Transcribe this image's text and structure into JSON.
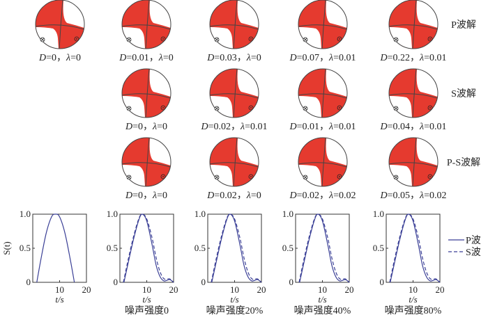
{
  "symbols": {
    "D": "D",
    "lambda": "λ",
    "eq": "=",
    "sep": "，"
  },
  "colors": {
    "red": "#e53a2f",
    "line": "#444444",
    "curve": "#3a3f96"
  },
  "rows": [
    {
      "title": "P波解",
      "balls": [
        {
          "D": "0",
          "lambda": "0"
        },
        {
          "D": "0.01",
          "lambda": "0"
        },
        {
          "D": "0.03",
          "lambda": "0"
        },
        {
          "D": "0.07",
          "lambda": "0.01"
        },
        {
          "D": "0.22",
          "lambda": "0.01"
        }
      ]
    },
    {
      "title": "S波解",
      "balls": [
        null,
        {
          "D": "0",
          "lambda": "0"
        },
        {
          "D": "0.02",
          "lambda": "0.01"
        },
        {
          "D": "0.01",
          "lambda": "0.01"
        },
        {
          "D": "0.04",
          "lambda": "0.01"
        }
      ]
    },
    {
      "title": "P-S波解",
      "balls": [
        null,
        {
          "D": "0",
          "lambda": "0"
        },
        {
          "D": "0.02",
          "lambda": "0"
        },
        {
          "D": "0.02",
          "lambda": "0.02"
        },
        {
          "D": "0.05",
          "lambda": "0.02"
        }
      ]
    }
  ],
  "chart_data": [
    {
      "type": "line",
      "title": "",
      "xlabel": "t/s",
      "ylabel": "S(t)",
      "caption": "",
      "xlim": [
        0,
        20
      ],
      "ylim": [
        0,
        1
      ],
      "xticks": [
        "10",
        "20"
      ],
      "yticks": [
        "1.0",
        "0.5",
        "0"
      ],
      "series": [
        {
          "name": "true",
          "style": "solid",
          "x": [
            1.5,
            3,
            5,
            7,
            8.5,
            10,
            12,
            14,
            15.5
          ],
          "y": [
            0,
            0.33,
            0.72,
            0.96,
            1,
            0.96,
            0.72,
            0.33,
            0
          ]
        }
      ]
    },
    {
      "type": "line",
      "xlabel": "t/s",
      "caption": "噪声强度0",
      "xlim": [
        0,
        20
      ],
      "ylim": [
        0,
        1
      ],
      "xticks": [
        "10",
        "20"
      ],
      "yticks": [
        "1.0",
        "0.5",
        "0"
      ],
      "series": [
        {
          "name": "P波",
          "style": "solid",
          "x": [
            1.5,
            3,
            5,
            7,
            8.3,
            10,
            12,
            13.5,
            15,
            16.5,
            18.5,
            20
          ],
          "y": [
            0,
            0.27,
            0.62,
            0.91,
            1,
            0.9,
            0.55,
            0.25,
            0.08,
            0.02,
            0.04,
            0
          ]
        },
        {
          "name": "S波",
          "style": "dashed",
          "x": [
            1.3,
            3,
            5,
            7,
            8.3,
            10,
            12,
            13.5,
            15,
            16.5,
            18.5,
            20
          ],
          "y": [
            0,
            0.32,
            0.66,
            0.93,
            1,
            0.93,
            0.65,
            0.36,
            0.15,
            0.05,
            0.05,
            0
          ]
        }
      ]
    },
    {
      "type": "line",
      "xlabel": "t/s",
      "caption": "噪声强度20%",
      "xlim": [
        0,
        20
      ],
      "ylim": [
        0,
        1
      ],
      "xticks": [
        "10",
        "20"
      ],
      "yticks": [
        "1.0",
        "0.5",
        "0"
      ],
      "series": [
        {
          "name": "P波",
          "style": "solid",
          "x": [
            1.5,
            3,
            5,
            7,
            8.3,
            10,
            12,
            13.5,
            15,
            16.5,
            18.5,
            20
          ],
          "y": [
            0,
            0.27,
            0.62,
            0.91,
            1,
            0.9,
            0.55,
            0.25,
            0.08,
            0.02,
            0.04,
            0
          ]
        },
        {
          "name": "S波",
          "style": "dashed",
          "x": [
            1.3,
            3,
            5,
            7,
            8.3,
            10,
            12,
            13.5,
            15,
            16.5,
            18.5,
            20
          ],
          "y": [
            0,
            0.32,
            0.66,
            0.93,
            1,
            0.93,
            0.65,
            0.36,
            0.15,
            0.05,
            0.05,
            0
          ]
        }
      ]
    },
    {
      "type": "line",
      "xlabel": "t/s",
      "caption": "噪声强度40%",
      "xlim": [
        0,
        20
      ],
      "ylim": [
        0,
        1
      ],
      "xticks": [
        "10",
        "20"
      ],
      "yticks": [
        "1.0",
        "0.5",
        "0"
      ],
      "series": [
        {
          "name": "P波",
          "style": "solid",
          "x": [
            1.5,
            3,
            5,
            7,
            8.3,
            10,
            12,
            13.5,
            15,
            16.5,
            18.5,
            20
          ],
          "y": [
            0,
            0.27,
            0.62,
            0.91,
            1,
            0.9,
            0.55,
            0.25,
            0.08,
            0.02,
            0.04,
            0
          ]
        },
        {
          "name": "S波",
          "style": "dashed",
          "x": [
            1.3,
            3,
            5,
            7,
            8.3,
            10,
            12,
            13.5,
            15,
            16.5,
            18.5,
            20
          ],
          "y": [
            0,
            0.32,
            0.66,
            0.93,
            1,
            0.93,
            0.65,
            0.36,
            0.15,
            0.05,
            0.05,
            0
          ]
        }
      ]
    },
    {
      "type": "line",
      "xlabel": "t/s",
      "caption": "噪声强度80%",
      "xlim": [
        0,
        20
      ],
      "ylim": [
        0,
        1
      ],
      "xticks": [
        "10",
        "20"
      ],
      "yticks": [
        "1.0",
        "0.5",
        "0"
      ],
      "series": [
        {
          "name": "P波",
          "style": "solid",
          "x": [
            1.5,
            3,
            5,
            7,
            8.3,
            10,
            12,
            13.5,
            15,
            16.5,
            18.5,
            20
          ],
          "y": [
            0,
            0.27,
            0.62,
            0.91,
            1,
            0.9,
            0.55,
            0.25,
            0.08,
            0.02,
            0.04,
            0
          ]
        },
        {
          "name": "S波",
          "style": "dashed",
          "x": [
            1.3,
            3,
            5,
            7,
            8.3,
            10,
            12,
            13.5,
            15,
            16.5,
            18.5,
            20
          ],
          "y": [
            0,
            0.32,
            0.66,
            0.93,
            1,
            0.93,
            0.65,
            0.36,
            0.15,
            0.05,
            0.05,
            0
          ]
        }
      ]
    }
  ],
  "legend": [
    {
      "label": "P波",
      "style": "solid"
    },
    {
      "label": "S波",
      "style": "dashed"
    }
  ]
}
